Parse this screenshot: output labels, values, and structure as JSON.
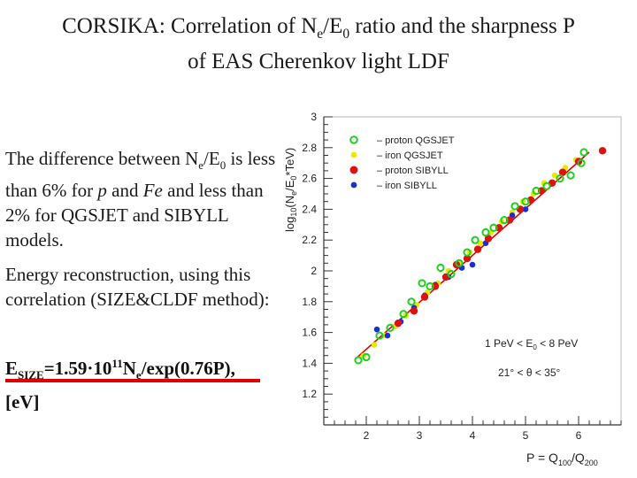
{
  "slide": {
    "title_line1_pre": "CORSIKA: Correlation of N",
    "title_line1_sub": "e",
    "title_line1_mid": "/E",
    "title_line1_sub2": "0",
    "title_line1_post": " ratio and the sharpness P",
    "title_line2": "of EAS Cherenkov light LDF",
    "para1_a": "The difference between N",
    "para1_a_sub": "e",
    "para1_b": "/E",
    "para1_b_sub": "0",
    "para1_c": " is less than 6% for ",
    "para1_p": "p",
    "para1_d": " and ",
    "para1_fe": "Fe",
    "para1_e": " and less than 2% for  QGSJET and SIBYLL models.",
    "para2": "Energy reconstruction,   using this correlation (SIZE&CLDF method):",
    "formula_e": "E",
    "formula_sub": "SIZE",
    "formula_eq": "=1.59·10",
    "formula_sup": "11",
    "formula_ne": "N",
    "formula_ne_sub": "e",
    "formula_rest": "/exp(0.76P),",
    "unit": "[eV]"
  },
  "chart_data": {
    "type": "scatter",
    "xlabel": "P = Q100/Q200",
    "xlabel_parts": {
      "pre": "P = Q",
      "s1": "100",
      "mid": "/Q",
      "s2": "200"
    },
    "ylabel": "log10(Ne/E0*TeV)",
    "ylabel_parts": {
      "a": "log",
      "a_sub": "10",
      "b": "(N",
      "b_sub": "e",
      "c": "/E",
      "c_sub": "0",
      "d": "*TeV)"
    },
    "xlim": [
      1.2,
      6.8
    ],
    "ylim": [
      1.0,
      3.0
    ],
    "xticks": [
      "2",
      "3",
      "4",
      "5",
      "6"
    ],
    "yticks": [
      "1.2",
      "1.4",
      "1.6",
      "1.8",
      "2",
      "2.2",
      "2.4",
      "2.6",
      "2.8",
      "3"
    ],
    "grid": false,
    "legend_position": "top-left",
    "annotations": [
      {
        "text_pre": "1 PeV < E",
        "text_sub": "0",
        "text_post": " < 8 PeV"
      },
      {
        "text_pre": "21° < θ < 35°"
      }
    ],
    "fit_line": {
      "x": [
        1.8,
        6.2
      ],
      "y": [
        1.43,
        2.77
      ],
      "color": "#e00000"
    },
    "series": [
      {
        "name": "– proton QGSJET",
        "marker": "open-circle",
        "color": "#1fd01f",
        "x": [
          1.85,
          2.0,
          2.25,
          2.45,
          2.7,
          2.85,
          3.05,
          3.2,
          3.4,
          3.6,
          3.75,
          3.9,
          4.05,
          4.25,
          4.4,
          4.6,
          4.8,
          5.0,
          5.2,
          5.4,
          5.65,
          5.85,
          6.05,
          6.1
        ],
        "y": [
          1.42,
          1.44,
          1.58,
          1.63,
          1.72,
          1.8,
          1.92,
          1.9,
          2.02,
          1.98,
          2.05,
          2.12,
          2.2,
          2.25,
          2.28,
          2.33,
          2.42,
          2.45,
          2.52,
          2.55,
          2.6,
          2.62,
          2.7,
          2.77
        ]
      },
      {
        "name": "– iron QGSJET",
        "marker": "dot",
        "color": "#e8e800",
        "x": [
          1.95,
          2.15,
          2.35,
          2.55,
          2.75,
          2.95,
          3.15,
          3.35,
          3.55,
          3.75,
          3.95,
          4.15,
          4.35,
          4.55,
          4.75,
          4.95,
          5.15,
          5.35,
          5.55,
          5.75,
          5.95
        ],
        "y": [
          1.45,
          1.52,
          1.58,
          1.64,
          1.71,
          1.78,
          1.86,
          1.92,
          2.0,
          2.05,
          2.12,
          2.18,
          2.25,
          2.32,
          2.38,
          2.45,
          2.5,
          2.57,
          2.62,
          2.67,
          2.72
        ]
      },
      {
        "name": "– proton SIBYLL",
        "marker": "dot",
        "color": "#dd1111",
        "x": [
          2.6,
          2.9,
          3.1,
          3.3,
          3.5,
          3.7,
          3.9,
          4.1,
          4.3,
          4.5,
          4.7,
          4.9,
          5.1,
          5.3,
          5.5,
          5.7,
          6.0,
          6.45
        ],
        "y": [
          1.66,
          1.74,
          1.83,
          1.9,
          1.96,
          2.04,
          2.08,
          2.14,
          2.21,
          2.28,
          2.33,
          2.4,
          2.46,
          2.52,
          2.57,
          2.64,
          2.71,
          2.78
        ]
      },
      {
        "name": "– iron SIBYLL",
        "marker": "dot",
        "color": "#1a2fd0",
        "x": [
          2.2,
          2.4,
          2.65,
          2.9,
          3.1,
          3.3,
          3.55,
          3.8,
          4.0,
          4.25,
          4.5,
          4.75,
          5.0,
          5.3
        ],
        "y": [
          1.62,
          1.58,
          1.67,
          1.76,
          1.84,
          1.91,
          1.96,
          2.02,
          2.04,
          2.18,
          2.28,
          2.36,
          2.4,
          2.52
        ]
      }
    ]
  }
}
